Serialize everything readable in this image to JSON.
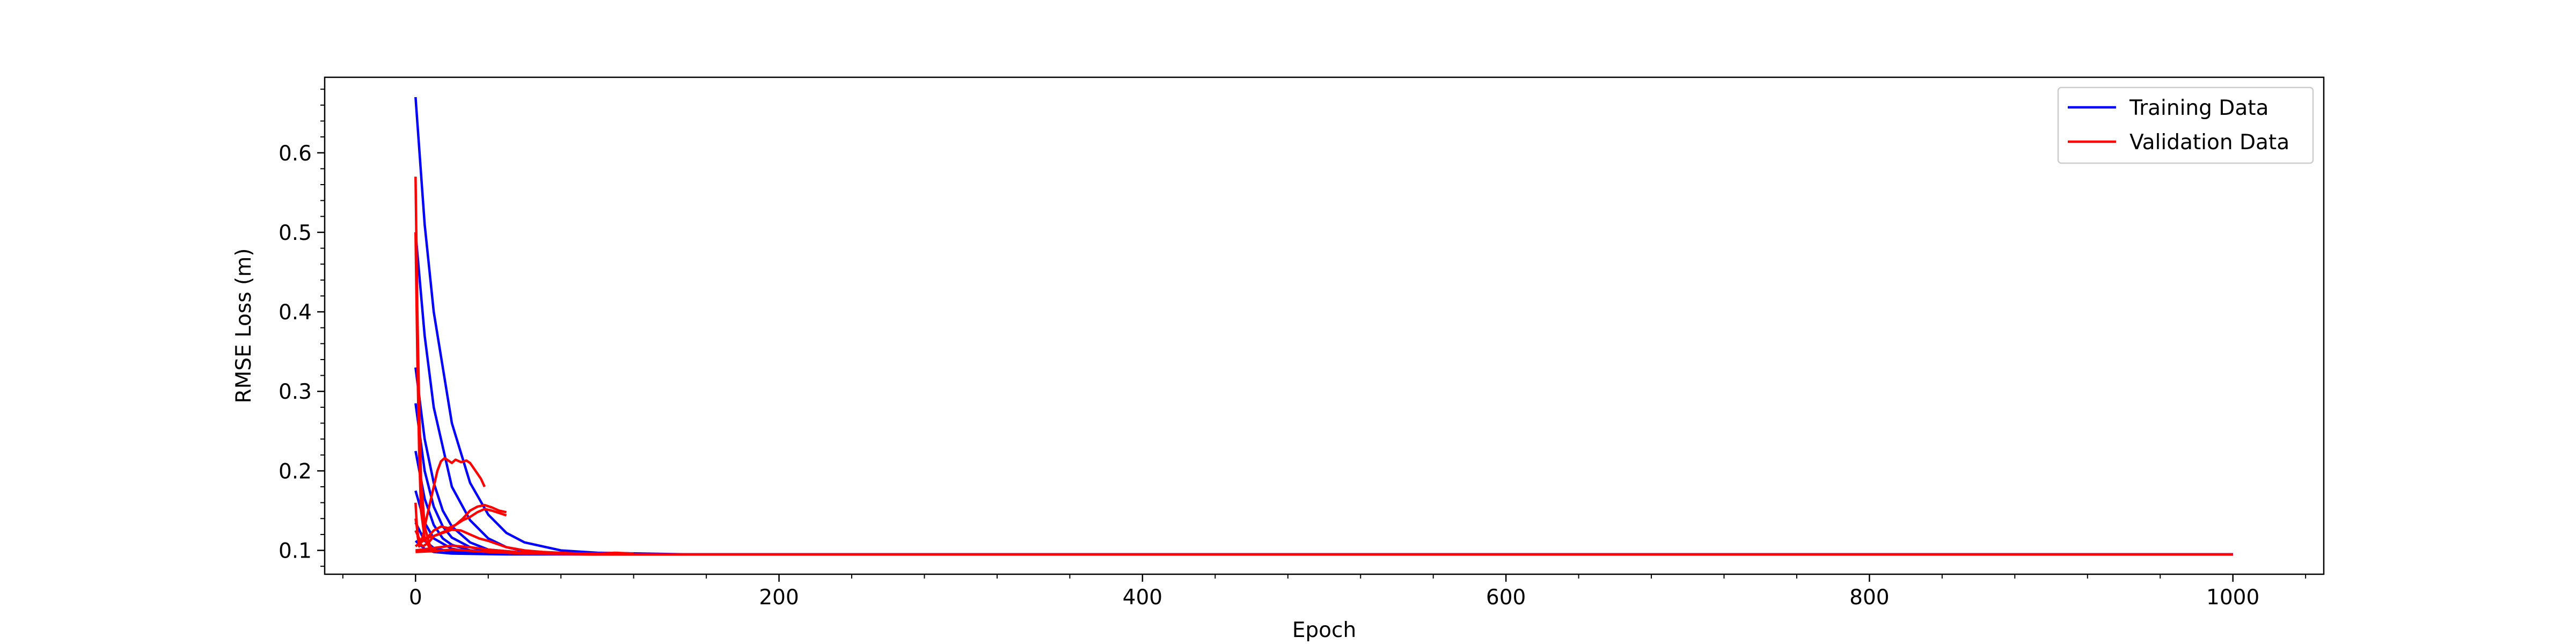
{
  "chart_data": {
    "type": "line",
    "xlabel": "Epoch",
    "ylabel": "RMSE Loss (m)",
    "xlim": [
      -50,
      1050
    ],
    "ylim": [
      0.07,
      0.695
    ],
    "xticks": [
      0,
      200,
      400,
      600,
      800,
      1000
    ],
    "yticks": [
      0.1,
      0.2,
      0.3,
      0.4,
      0.5,
      0.6
    ],
    "xtick_labels": [
      "0",
      "200",
      "400",
      "600",
      "800",
      "1000"
    ],
    "ytick_labels": [
      "0.1",
      "0.2",
      "0.3",
      "0.4",
      "0.5",
      "0.6"
    ],
    "grid": false,
    "legend": {
      "position": "top-right",
      "entries": [
        {
          "label": "Training Data",
          "color": "#0000ff"
        },
        {
          "label": "Validation Data",
          "color": "#ff0000"
        }
      ]
    },
    "series": [
      {
        "group": "Training Data",
        "color": "#0000ff",
        "x": [
          0,
          5,
          10,
          20,
          30,
          40,
          50,
          60,
          80,
          100,
          150,
          1000
        ],
        "y": [
          0.67,
          0.51,
          0.4,
          0.26,
          0.185,
          0.145,
          0.122,
          0.11,
          0.1,
          0.097,
          0.095,
          0.095
        ]
      },
      {
        "group": "Training Data",
        "color": "#0000ff",
        "x": [
          0,
          5,
          10,
          20,
          30,
          40,
          50,
          60,
          80,
          100,
          1000
        ],
        "y": [
          0.5,
          0.37,
          0.28,
          0.18,
          0.138,
          0.115,
          0.104,
          0.099,
          0.096,
          0.095,
          0.095
        ]
      },
      {
        "group": "Training Data",
        "color": "#0000ff",
        "x": [
          0,
          5,
          10,
          15,
          20,
          30,
          40,
          60,
          100,
          1000
        ],
        "y": [
          0.33,
          0.24,
          0.185,
          0.15,
          0.13,
          0.11,
          0.101,
          0.097,
          0.095,
          0.095
        ]
      },
      {
        "group": "Training Data",
        "color": "#0000ff",
        "x": [
          0,
          5,
          10,
          15,
          20,
          30,
          40,
          60,
          100,
          1000
        ],
        "y": [
          0.285,
          0.2,
          0.155,
          0.13,
          0.116,
          0.104,
          0.099,
          0.096,
          0.095,
          0.095
        ]
      },
      {
        "group": "Training Data",
        "color": "#0000ff",
        "x": [
          0,
          5,
          10,
          15,
          20,
          30,
          50,
          100,
          1000
        ],
        "y": [
          0.225,
          0.165,
          0.132,
          0.115,
          0.107,
          0.1,
          0.096,
          0.095,
          0.095
        ]
      },
      {
        "group": "Training Data",
        "color": "#0000ff",
        "x": [
          0,
          5,
          10,
          20,
          30,
          50,
          100,
          1000
        ],
        "y": [
          0.175,
          0.135,
          0.115,
          0.102,
          0.098,
          0.096,
          0.095,
          0.095
        ]
      },
      {
        "group": "Training Data",
        "color": "#0000ff",
        "x": [
          0,
          5,
          10,
          20,
          40,
          100,
          1000
        ],
        "y": [
          0.135,
          0.112,
          0.103,
          0.098,
          0.096,
          0.095,
          0.095
        ]
      },
      {
        "group": "Training Data",
        "color": "#0000ff",
        "x": [
          0,
          5,
          10,
          20,
          50,
          1000
        ],
        "y": [
          0.112,
          0.102,
          0.098,
          0.096,
          0.095,
          0.095
        ]
      },
      {
        "group": "Validation Data",
        "color": "#ff0000",
        "x": [
          0,
          1,
          2,
          3,
          5,
          8,
          12
        ],
        "y": [
          0.57,
          0.4,
          0.28,
          0.19,
          0.13,
          0.105,
          0.098
        ]
      },
      {
        "group": "Validation Data",
        "color": "#ff0000",
        "x": [
          0,
          1,
          2,
          3,
          5,
          8,
          10
        ],
        "y": [
          0.5,
          0.34,
          0.22,
          0.15,
          0.115,
          0.102,
          0.099
        ]
      },
      {
        "group": "Validation Data",
        "color": "#ff0000",
        "x": [
          0,
          1,
          2,
          4,
          6,
          8,
          10,
          12,
          14,
          16,
          18,
          20,
          22,
          25,
          28,
          30,
          33,
          36,
          38
        ],
        "y": [
          0.16,
          0.12,
          0.105,
          0.118,
          0.14,
          0.16,
          0.18,
          0.2,
          0.212,
          0.216,
          0.213,
          0.21,
          0.214,
          0.211,
          0.213,
          0.21,
          0.2,
          0.19,
          0.18
        ]
      },
      {
        "group": "Validation Data",
        "color": "#ff0000",
        "x": [
          0,
          2,
          4,
          6,
          8,
          10,
          14,
          18,
          22,
          26,
          30,
          34,
          38,
          42,
          46,
          50
        ],
        "y": [
          0.14,
          0.11,
          0.105,
          0.108,
          0.112,
          0.118,
          0.122,
          0.126,
          0.132,
          0.14,
          0.15,
          0.155,
          0.157,
          0.154,
          0.15,
          0.148
        ]
      },
      {
        "group": "Validation Data",
        "color": "#ff0000",
        "x": [
          0,
          3,
          6,
          10,
          14,
          18,
          22,
          26,
          30,
          34,
          38,
          42,
          46,
          50
        ],
        "y": [
          0.125,
          0.11,
          0.115,
          0.125,
          0.13,
          0.128,
          0.132,
          0.138,
          0.142,
          0.148,
          0.152,
          0.15,
          0.147,
          0.144
        ]
      },
      {
        "group": "Validation Data",
        "color": "#ff0000",
        "x": [
          0,
          5,
          10,
          15,
          20,
          25,
          30,
          35,
          40,
          45,
          50,
          60,
          70,
          80,
          90,
          100,
          110,
          120
        ],
        "y": [
          0.105,
          0.115,
          0.118,
          0.122,
          0.126,
          0.125,
          0.12,
          0.115,
          0.112,
          0.108,
          0.104,
          0.1,
          0.098,
          0.097,
          0.096,
          0.096,
          0.097,
          0.096
        ]
      },
      {
        "group": "Validation Data",
        "color": "#ff0000",
        "x": [
          0,
          10,
          20,
          30,
          40,
          50,
          60,
          80,
          100,
          120,
          1000
        ],
        "y": [
          0.1,
          0.103,
          0.106,
          0.104,
          0.101,
          0.099,
          0.097,
          0.096,
          0.095,
          0.095,
          0.095
        ]
      },
      {
        "group": "Validation Data",
        "color": "#ff0000",
        "x": [
          0,
          10,
          20,
          40,
          60,
          100,
          1000
        ],
        "y": [
          0.098,
          0.099,
          0.101,
          0.098,
          0.096,
          0.095,
          0.095
        ]
      }
    ]
  }
}
